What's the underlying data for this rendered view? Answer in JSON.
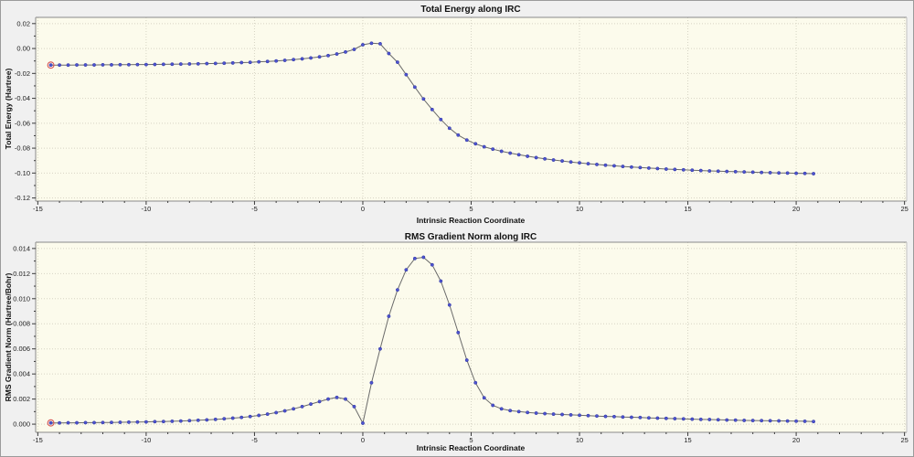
{
  "colors": {
    "window_bg": "#f0f0f0",
    "plot_bg": "#fcfbec",
    "grid": "#d6d4c4",
    "frame_dark": "#8a8a8a",
    "frame_light": "#c2c2c2",
    "tick": "#3a3a3a",
    "line": "#6a6a6a",
    "marker": "#4d53cf",
    "marker_edge": "#2e34a0",
    "first_point_ring": "#d85555",
    "text": "#101010"
  },
  "chart_data": [
    {
      "type": "line",
      "title": "Total Energy along IRC",
      "xlabel": "Intrinsic Reaction Coordinate",
      "ylabel": "Total Energy (Hartree)",
      "xlim": [
        -15.1,
        25.1
      ],
      "ylim": [
        -0.1225,
        0.025
      ],
      "grid": true,
      "legend": "none",
      "marker_style": "small filled circle",
      "first_point_highlighted": true,
      "xticks": [
        -15,
        -10,
        -5,
        0,
        5,
        10,
        15,
        20,
        25
      ],
      "xtick_labels": [
        "-15",
        "-10",
        "-5",
        "0",
        "5",
        "10",
        "15",
        "20",
        "25"
      ],
      "x_minor_step": 1,
      "yticks": [
        0.02,
        0.0,
        -0.02,
        -0.04,
        -0.06,
        -0.08,
        -0.1,
        -0.12
      ],
      "ytick_labels": [
        "0.02",
        "0.00",
        "-0.02",
        "-0.04",
        "-0.06",
        "-0.08",
        "-0.10",
        "-0.12"
      ],
      "series": [
        {
          "name": "Total Energy",
          "x": [
            -14.4,
            -14,
            -13.6,
            -13.2,
            -12.8,
            -12.4,
            -12,
            -11.6,
            -11.2,
            -10.8,
            -10.4,
            -10,
            -9.6,
            -9.2,
            -8.8,
            -8.4,
            -8,
            -7.6,
            -7.2,
            -6.8,
            -6.4,
            -6,
            -5.6,
            -5.2,
            -4.8,
            -4.4,
            -4,
            -3.6,
            -3.2,
            -2.8,
            -2.4,
            -2,
            -1.6,
            -1.2,
            -0.8,
            -0.4,
            0,
            0.4,
            0.8,
            1.2,
            1.6,
            2,
            2.4,
            2.8,
            3.2,
            3.6,
            4,
            4.4,
            4.8,
            5.2,
            5.6,
            6,
            6.4,
            6.8,
            7.2,
            7.6,
            8,
            8.4,
            8.8,
            9.2,
            9.6,
            10,
            10.4,
            10.8,
            11.2,
            11.6,
            12,
            12.4,
            12.8,
            13.2,
            13.6,
            14,
            14.4,
            14.8,
            15.2,
            15.6,
            16,
            16.4,
            16.8,
            17.2,
            17.6,
            18,
            18.4,
            18.8,
            19.2,
            19.6,
            20,
            20.4,
            20.8
          ],
          "y": [
            -0.0133,
            -0.0133,
            -0.0133,
            -0.0132,
            -0.0132,
            -0.0132,
            -0.0131,
            -0.0131,
            -0.013,
            -0.013,
            -0.0129,
            -0.0129,
            -0.0128,
            -0.0127,
            -0.0126,
            -0.0125,
            -0.0124,
            -0.0123,
            -0.0121,
            -0.012,
            -0.0118,
            -0.0116,
            -0.0113,
            -0.0111,
            -0.0107,
            -0.0104,
            -0.01,
            -0.0095,
            -0.0089,
            -0.0083,
            -0.0076,
            -0.0067,
            -0.0057,
            -0.0044,
            -0.0028,
            -0.0007,
            0.003,
            0.0042,
            0.0038,
            -0.004,
            -0.011,
            -0.021,
            -0.031,
            -0.0405,
            -0.049,
            -0.057,
            -0.064,
            -0.0695,
            -0.0735,
            -0.0765,
            -0.0789,
            -0.0808,
            -0.0825,
            -0.084,
            -0.0853,
            -0.0865,
            -0.0876,
            -0.0886,
            -0.0895,
            -0.0903,
            -0.0911,
            -0.0918,
            -0.0925,
            -0.0931,
            -0.0937,
            -0.0942,
            -0.0947,
            -0.0952,
            -0.0956,
            -0.096,
            -0.0964,
            -0.0968,
            -0.0971,
            -0.0974,
            -0.0977,
            -0.098,
            -0.0983,
            -0.0985,
            -0.0987,
            -0.0989,
            -0.0991,
            -0.0993,
            -0.0995,
            -0.0997,
            -0.0999,
            -0.1,
            -0.1002,
            -0.1003,
            -0.1005
          ]
        }
      ]
    },
    {
      "type": "line",
      "title": "RMS Gradient Norm along IRC",
      "xlabel": "Intrinsic Reaction Coordinate",
      "ylabel": "RMS Gradient Norm (Hartree/Bohr)",
      "xlim": [
        -15.1,
        25.1
      ],
      "ylim": [
        -0.00065,
        0.0145
      ],
      "grid": true,
      "legend": "none",
      "marker_style": "small filled circle",
      "first_point_highlighted": true,
      "xticks": [
        -15,
        -10,
        -5,
        0,
        5,
        10,
        15,
        20,
        25
      ],
      "xtick_labels": [
        "-15",
        "-10",
        "-5",
        "0",
        "5",
        "10",
        "15",
        "20",
        "25"
      ],
      "x_minor_step": 1,
      "yticks": [
        0.014,
        0.012,
        0.01,
        0.008,
        0.006,
        0.004,
        0.002,
        0.0
      ],
      "ytick_labels": [
        "0.014",
        "0.012",
        "0.010",
        "0.008",
        "0.006",
        "0.004",
        "0.002",
        "0.000"
      ],
      "series": [
        {
          "name": "RMS Gradient Norm",
          "x": [
            -14.4,
            -14,
            -13.6,
            -13.2,
            -12.8,
            -12.4,
            -12,
            -11.6,
            -11.2,
            -10.8,
            -10.4,
            -10,
            -9.6,
            -9.2,
            -8.8,
            -8.4,
            -8,
            -7.6,
            -7.2,
            -6.8,
            -6.4,
            -6,
            -5.6,
            -5.2,
            -4.8,
            -4.4,
            -4,
            -3.6,
            -3.2,
            -2.8,
            -2.4,
            -2,
            -1.6,
            -1.2,
            -0.8,
            -0.4,
            0,
            0.4,
            0.8,
            1.2,
            1.6,
            2,
            2.4,
            2.8,
            3.2,
            3.6,
            4,
            4.4,
            4.8,
            5.2,
            5.6,
            6,
            6.4,
            6.8,
            7.2,
            7.6,
            8,
            8.4,
            8.8,
            9.2,
            9.6,
            10,
            10.4,
            10.8,
            11.2,
            11.6,
            12,
            12.4,
            12.8,
            13.2,
            13.6,
            14,
            14.4,
            14.8,
            15.2,
            15.6,
            16,
            16.4,
            16.8,
            17.2,
            17.6,
            18,
            18.4,
            18.8,
            19.2,
            19.6,
            20,
            20.4,
            20.8
          ],
          "y": [
            0.0001,
            0.0001,
            0.00011,
            0.00011,
            0.00012,
            0.00012,
            0.00013,
            0.00014,
            0.00015,
            0.00016,
            0.00017,
            0.00018,
            0.0002,
            0.00021,
            0.00023,
            0.00025,
            0.00028,
            0.00031,
            0.00034,
            0.00038,
            0.00043,
            0.00048,
            0.00054,
            0.00061,
            0.0007,
            0.0008,
            0.00092,
            0.00106,
            0.00122,
            0.0014,
            0.0016,
            0.0018,
            0.002,
            0.00213,
            0.002,
            0.0014,
            8e-05,
            0.0033,
            0.006,
            0.0086,
            0.0107,
            0.0123,
            0.0132,
            0.0133,
            0.0127,
            0.0114,
            0.0095,
            0.0073,
            0.0051,
            0.0033,
            0.0021,
            0.0015,
            0.00122,
            0.00108,
            0.001,
            0.00093,
            0.00088,
            0.00084,
            0.0008,
            0.00077,
            0.00074,
            0.00071,
            0.00068,
            0.00065,
            0.00062,
            0.0006,
            0.00057,
            0.00055,
            0.00053,
            0.0005,
            0.00048,
            0.00046,
            0.00044,
            0.00042,
            0.0004,
            0.00038,
            0.00037,
            0.00035,
            0.00033,
            0.00032,
            0.0003,
            0.00029,
            0.00028,
            0.00027,
            0.00026,
            0.00025,
            0.00024,
            0.00023,
            0.00021
          ]
        }
      ]
    }
  ]
}
